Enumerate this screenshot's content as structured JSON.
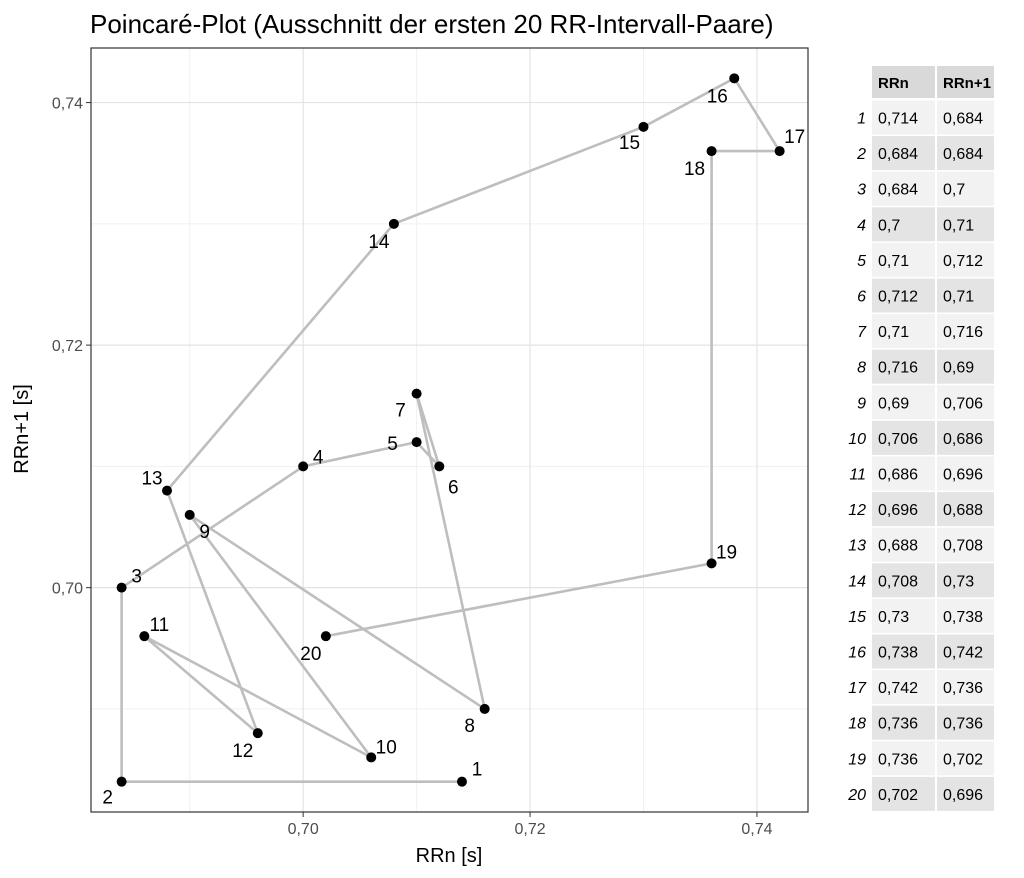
{
  "chart_data": {
    "type": "scatter",
    "title": "Poincaré-Plot (Ausschnitt der ersten 20 RR-Intervall-Paare)",
    "xlabel": "RRn [s]",
    "ylabel": "RRn+1 [s]",
    "xlim": [
      0.6813,
      0.7445
    ],
    "ylim": [
      0.6815,
      0.7445
    ],
    "x_ticks": [
      0.7,
      0.72,
      0.74
    ],
    "x_tick_labels": [
      "0,70",
      "0,72",
      "0,74"
    ],
    "y_ticks": [
      0.7,
      0.72,
      0.74
    ],
    "y_tick_labels": [
      "0,70",
      "0,72",
      "0,74"
    ],
    "grid": true,
    "connected": true,
    "line_color": "#bebebe",
    "point_color": "#000000",
    "points": [
      {
        "label": "1",
        "x": 0.714,
        "y": 0.684
      },
      {
        "label": "2",
        "x": 0.684,
        "y": 0.684
      },
      {
        "label": "3",
        "x": 0.684,
        "y": 0.7
      },
      {
        "label": "4",
        "x": 0.7,
        "y": 0.71
      },
      {
        "label": "5",
        "x": 0.71,
        "y": 0.712
      },
      {
        "label": "6",
        "x": 0.712,
        "y": 0.71
      },
      {
        "label": "7",
        "x": 0.71,
        "y": 0.716
      },
      {
        "label": "8",
        "x": 0.716,
        "y": 0.69
      },
      {
        "label": "9",
        "x": 0.69,
        "y": 0.706
      },
      {
        "label": "10",
        "x": 0.706,
        "y": 0.686
      },
      {
        "label": "11",
        "x": 0.686,
        "y": 0.696
      },
      {
        "label": "12",
        "x": 0.696,
        "y": 0.688
      },
      {
        "label": "13",
        "x": 0.688,
        "y": 0.708
      },
      {
        "label": "14",
        "x": 0.708,
        "y": 0.73
      },
      {
        "label": "15",
        "x": 0.73,
        "y": 0.738
      },
      {
        "label": "16",
        "x": 0.738,
        "y": 0.742
      },
      {
        "label": "17",
        "x": 0.742,
        "y": 0.736
      },
      {
        "label": "18",
        "x": 0.736,
        "y": 0.736
      },
      {
        "label": "19",
        "x": 0.736,
        "y": 0.702
      },
      {
        "label": "20",
        "x": 0.702,
        "y": 0.696
      }
    ],
    "table": {
      "columns": [
        "RRn",
        "RRn+1"
      ],
      "rows": [
        [
          "1",
          "0,714",
          "0,684"
        ],
        [
          "2",
          "0,684",
          "0,684"
        ],
        [
          "3",
          "0,684",
          "0,7"
        ],
        [
          "4",
          "0,7",
          "0,71"
        ],
        [
          "5",
          "0,71",
          "0,712"
        ],
        [
          "6",
          "0,712",
          "0,71"
        ],
        [
          "7",
          "0,71",
          "0,716"
        ],
        [
          "8",
          "0,716",
          "0,69"
        ],
        [
          "9",
          "0,69",
          "0,706"
        ],
        [
          "10",
          "0,706",
          "0,686"
        ],
        [
          "11",
          "0,686",
          "0,696"
        ],
        [
          "12",
          "0,696",
          "0,688"
        ],
        [
          "13",
          "0,688",
          "0,708"
        ],
        [
          "14",
          "0,708",
          "0,73"
        ],
        [
          "15",
          "0,73",
          "0,738"
        ],
        [
          "16",
          "0,738",
          "0,742"
        ],
        [
          "17",
          "0,742",
          "0,736"
        ],
        [
          "18",
          "0,736",
          "0,736"
        ],
        [
          "19",
          "0,736",
          "0,702"
        ],
        [
          "20",
          "0,702",
          "0,696"
        ]
      ]
    }
  }
}
